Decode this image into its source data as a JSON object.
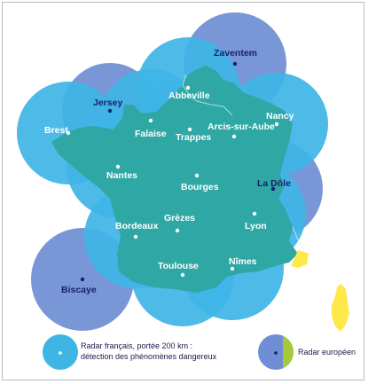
{
  "colors": {
    "radar_french": "#3fb5e6",
    "radar_european": "#6f8ed3",
    "france_fill": "#2ea7a5",
    "label_white": "#ffffff",
    "label_dark": "#1a1f6b",
    "corsica": "#ffe84a",
    "european_land": "#a6c93a"
  },
  "french_radars": [
    {
      "name": "Abbeville"
    },
    {
      "name": "Falaise"
    },
    {
      "name": "Trappes"
    },
    {
      "name": "Arcis-sur-Aube"
    },
    {
      "name": "Nancy"
    },
    {
      "name": "Brest"
    },
    {
      "name": "Nantes"
    },
    {
      "name": "Bourges"
    },
    {
      "name": "Grèzes"
    },
    {
      "name": "Bordeaux"
    },
    {
      "name": "Lyon"
    },
    {
      "name": "Toulouse"
    },
    {
      "name": "Nîmes"
    }
  ],
  "european_radars": [
    {
      "name": "Zaventem"
    },
    {
      "name": "Jersey"
    },
    {
      "name": "La Dôle"
    },
    {
      "name": "Biscaye"
    }
  ],
  "legend": {
    "french_line1": "Radar français, portée 200 km :",
    "french_line2": "détection des phénomènes dangereux",
    "european": "Radar européen"
  }
}
